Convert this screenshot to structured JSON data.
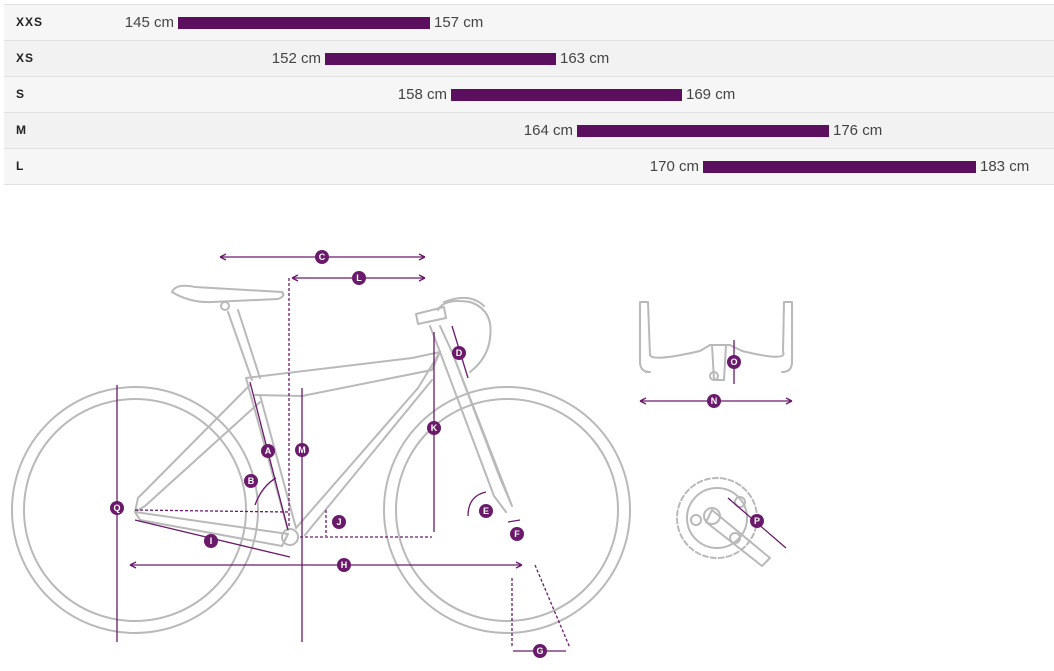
{
  "size_chart": {
    "rows": [
      {
        "size": "XXS",
        "min_label": "145 cm",
        "max_label": "157 cm",
        "min_cm": 145,
        "max_cm": 157
      },
      {
        "size": "XS",
        "min_label": "152 cm",
        "max_label": "163 cm",
        "min_cm": 152,
        "max_cm": 163
      },
      {
        "size": "S",
        "min_label": "158 cm",
        "max_label": "169 cm",
        "min_cm": 158,
        "max_cm": 169
      },
      {
        "size": "M",
        "min_label": "164 cm",
        "max_label": "176 cm",
        "min_cm": 164,
        "max_cm": 176
      },
      {
        "size": "L",
        "min_label": "170 cm",
        "max_label": "183 cm",
        "min_cm": 170,
        "max_cm": 183
      }
    ],
    "bar_color": "#5c0f5e"
  },
  "geometry_markers": [
    "A",
    "B",
    "C",
    "D",
    "E",
    "F",
    "G",
    "H",
    "I",
    "J",
    "K",
    "L",
    "M",
    "N",
    "O",
    "P",
    "Q"
  ],
  "colors": {
    "frame_line": "#b9b9b9",
    "marker": "#6b1a6b"
  }
}
